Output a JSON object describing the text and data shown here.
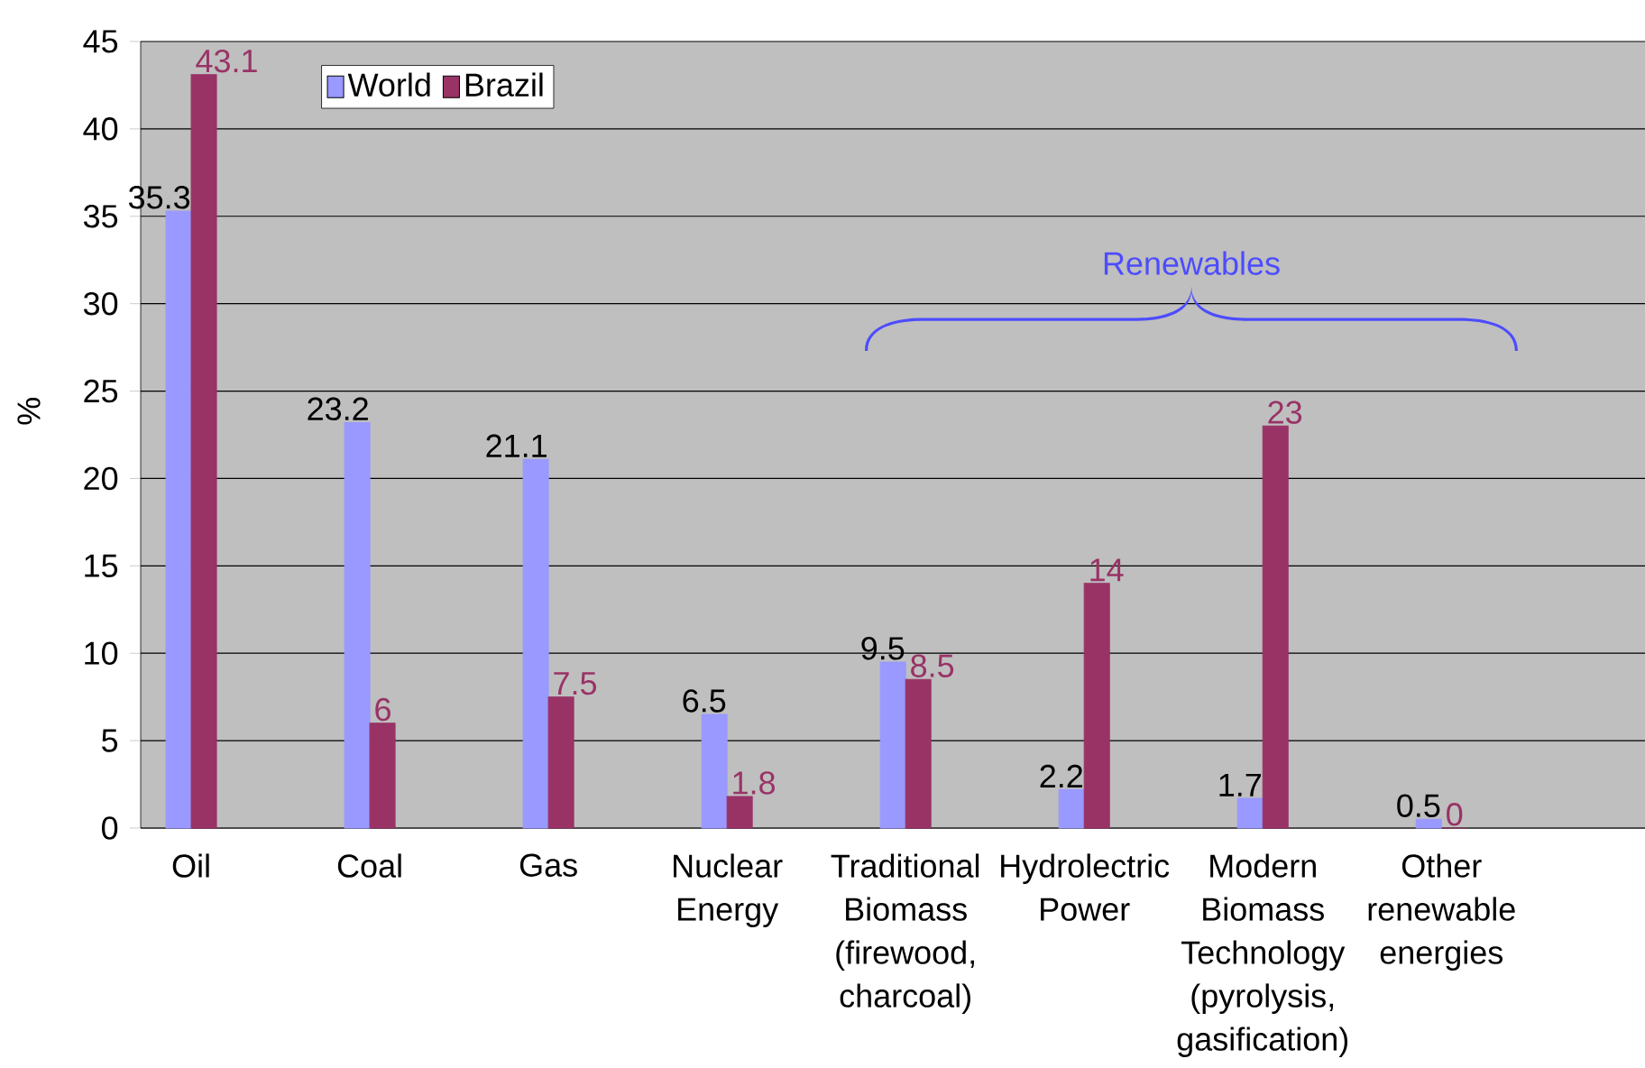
{
  "chart_data": {
    "type": "bar",
    "ylabel": "%",
    "categories": [
      "Oil",
      "Coal",
      "Gas",
      "Nuclear Energy",
      "Traditional Biomass (firewood, charcoal)",
      "Hydrolectric Power",
      "Modern Biomass Technology (pyrolysis, gasification)",
      "Other renewable energies"
    ],
    "series": [
      {
        "name": "World",
        "color": "#9999ff",
        "values": [
          35.3,
          23.2,
          21.1,
          6.5,
          9.5,
          2.2,
          1.7,
          0.5
        ]
      },
      {
        "name": "Brazil",
        "color": "#993366",
        "values": [
          43.1,
          6,
          7.5,
          1.8,
          8.5,
          14,
          23,
          0
        ]
      }
    ],
    "ylim": [
      0,
      45
    ],
    "yticks": [
      0,
      5,
      10,
      15,
      20,
      25,
      30,
      35,
      40,
      45
    ],
    "grid": "y",
    "legend": "top left",
    "data_labels": true,
    "annotations": [
      "Renewables"
    ]
  }
}
